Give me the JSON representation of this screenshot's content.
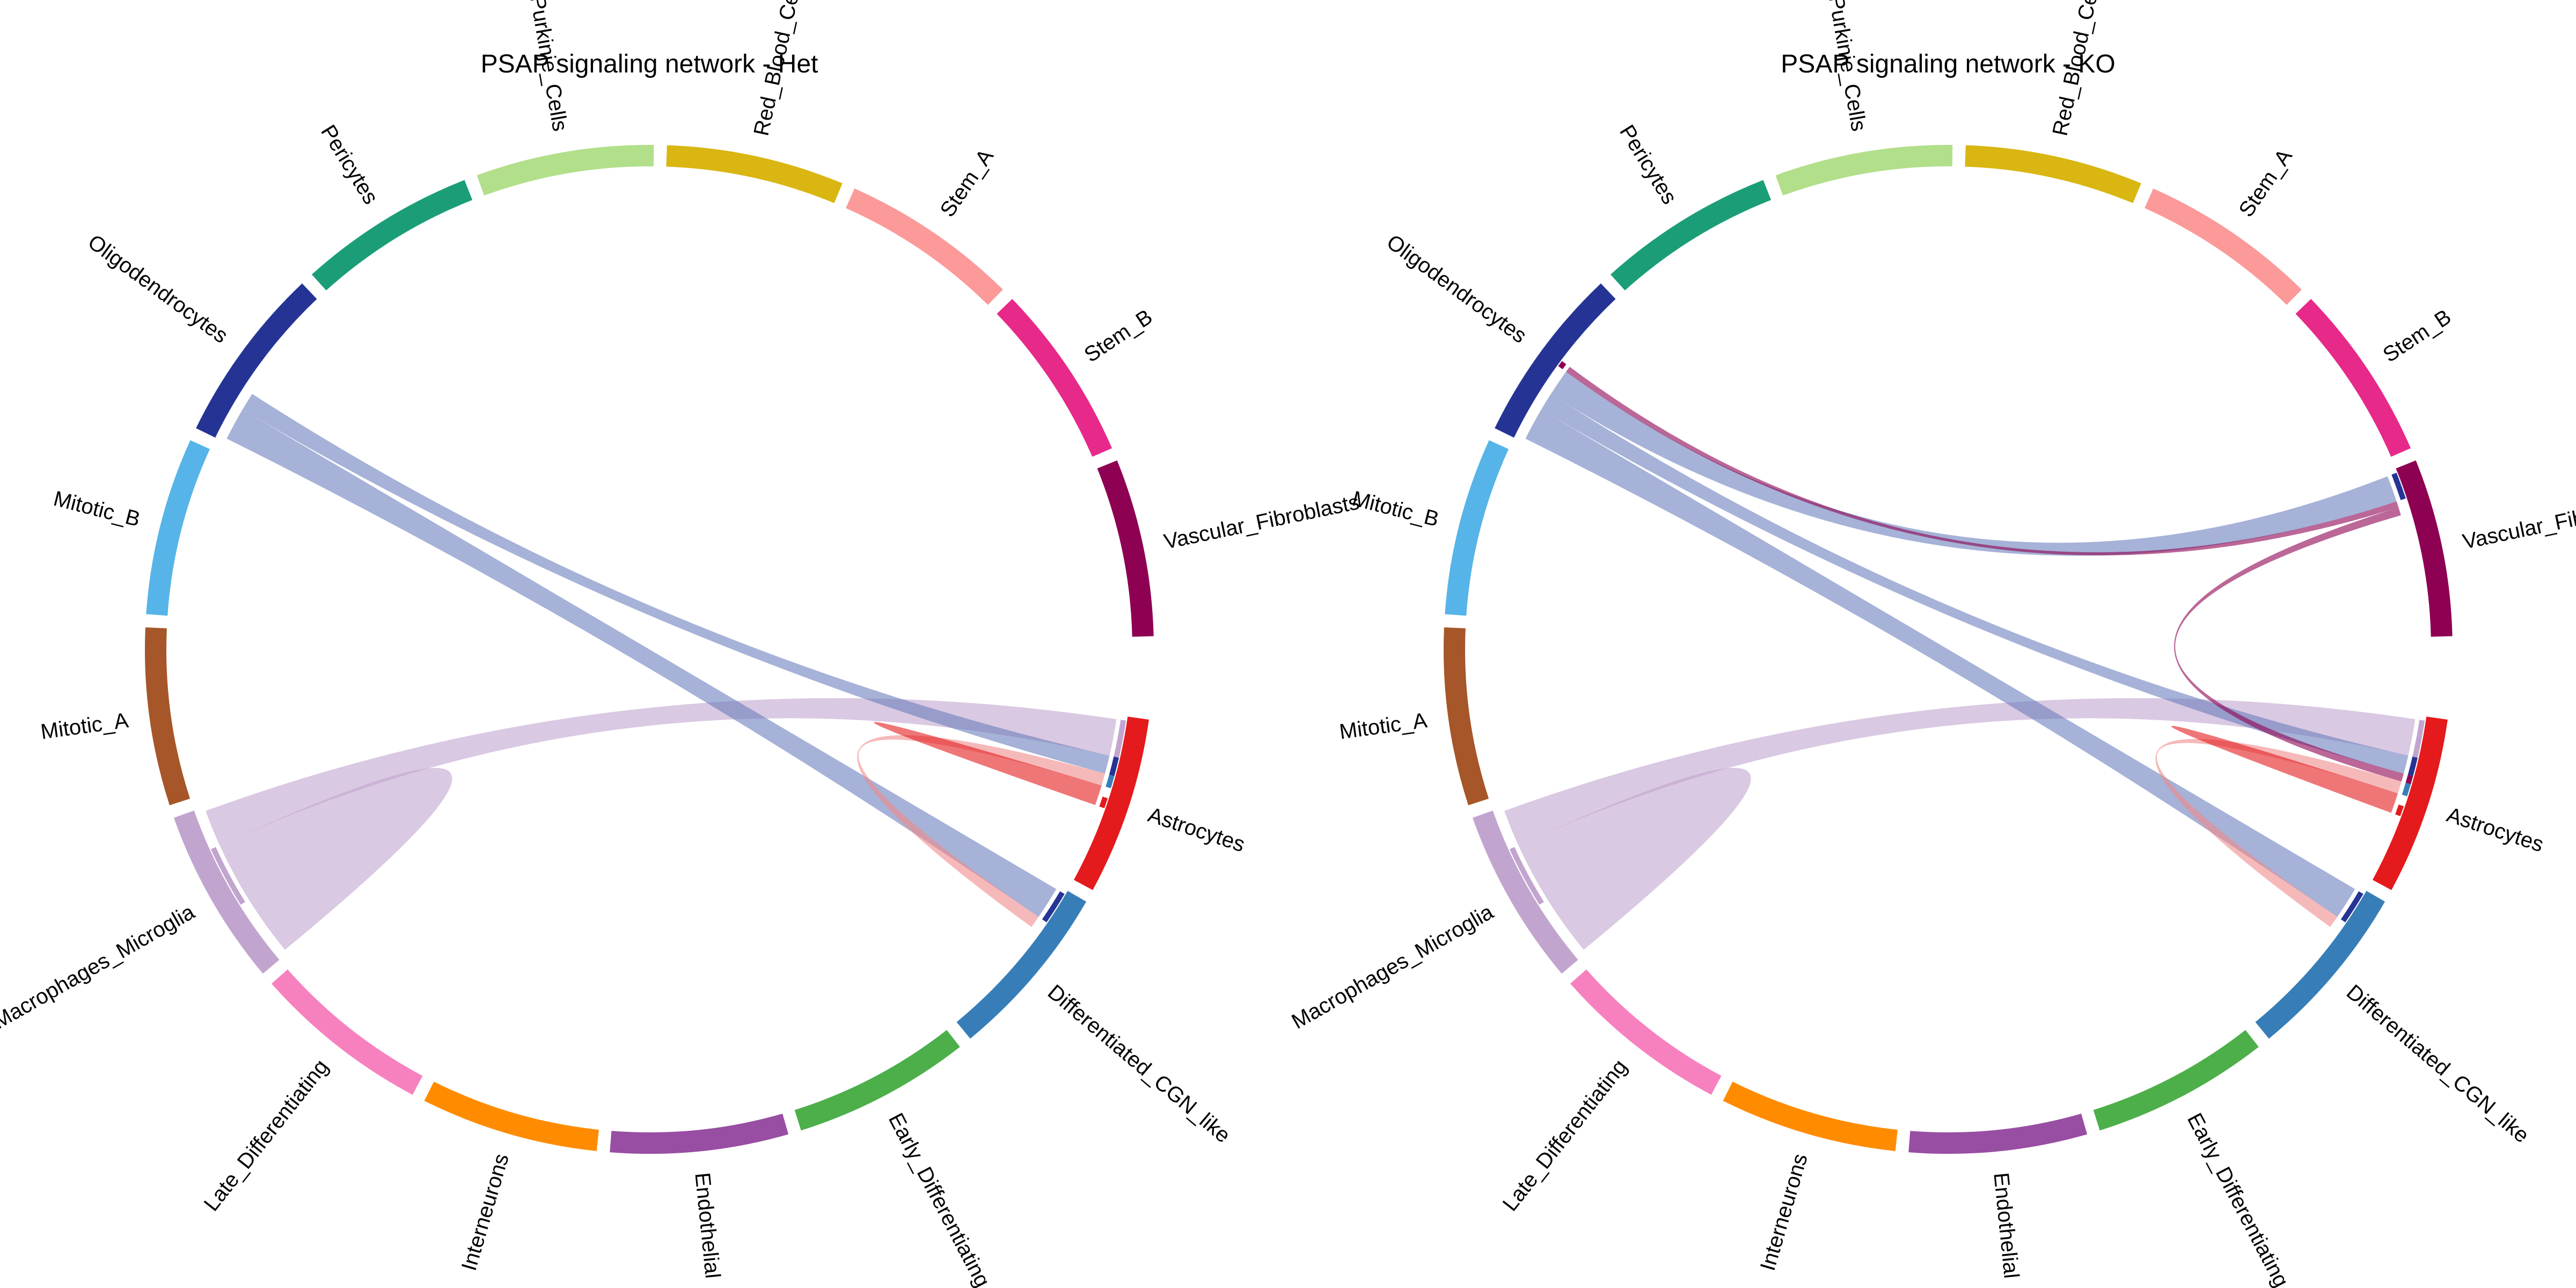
{
  "sectors": [
    {
      "name": "Astrocytes",
      "color": "#e41a1c"
    },
    {
      "name": "Differentiated_CGN_like",
      "color": "#377eb8"
    },
    {
      "name": "Early_Differentiating",
      "color": "#4daf4a"
    },
    {
      "name": "Endothelial",
      "color": "#984ea3"
    },
    {
      "name": "Interneurons",
      "color": "#ff8c00"
    },
    {
      "name": "Late_Differentiating",
      "color": "#f781bf"
    },
    {
      "name": "Macrophages_Microglia",
      "color": "#c2a5cf"
    },
    {
      "name": "Mitotic_A",
      "color": "#a65628"
    },
    {
      "name": "Mitotic_B",
      "color": "#56b4e9"
    },
    {
      "name": "Oligodendrocytes",
      "color": "#253494"
    },
    {
      "name": "Pericytes",
      "color": "#1b9e77"
    },
    {
      "name": "Purkinje_Cells",
      "color": "#b2df8a"
    },
    {
      "name": "Red_Blood_Cells",
      "color": "#d9b611"
    },
    {
      "name": "Stem_A",
      "color": "#fb9a99"
    },
    {
      "name": "Stem_B",
      "color": "#e7298a"
    },
    {
      "name": "Vascular_Fibroblasts",
      "color": "#8e0152"
    }
  ],
  "panels": [
    {
      "id": "het",
      "title": "PSAP signaling network - Het",
      "links": [
        {
          "from": "Macrophages_Microglia",
          "to": "Macrophages_Microglia",
          "weight": 3.0
        },
        {
          "from": "Macrophages_Microglia",
          "to": "Astrocytes",
          "weight": 1.8
        },
        {
          "from": "Oligodendrocytes",
          "to": "Differentiated_CGN_like",
          "weight": 1.6
        },
        {
          "from": "Oligodendrocytes",
          "to": "Astrocytes",
          "weight": 0.9
        },
        {
          "from": "Differentiated_CGN_like",
          "to": "Astrocytes",
          "weight": 0.6
        },
        {
          "from": "Astrocytes",
          "to": "Astrocytes",
          "weight": 0.5
        }
      ]
    },
    {
      "id": "ko",
      "title": "PSAP signaling network - KO",
      "links": [
        {
          "from": "Macrophages_Microglia",
          "to": "Macrophages_Microglia",
          "weight": 3.0
        },
        {
          "from": "Macrophages_Microglia",
          "to": "Astrocytes",
          "weight": 1.8
        },
        {
          "from": "Oligodendrocytes",
          "to": "Differentiated_CGN_like",
          "weight": 1.6
        },
        {
          "from": "Oligodendrocytes",
          "to": "Astrocytes",
          "weight": 0.9
        },
        {
          "from": "Oligodendrocytes",
          "to": "Vascular_Fibroblasts",
          "weight": 1.3
        },
        {
          "from": "Vascular_Fibroblasts",
          "to": "Oligodendrocytes",
          "weight": 0.3
        },
        {
          "from": "Vascular_Fibroblasts",
          "to": "Astrocytes",
          "weight": 0.4
        },
        {
          "from": "Differentiated_CGN_like",
          "to": "Astrocytes",
          "weight": 0.6
        },
        {
          "from": "Astrocytes",
          "to": "Astrocytes",
          "weight": 0.5
        }
      ]
    }
  ]
}
